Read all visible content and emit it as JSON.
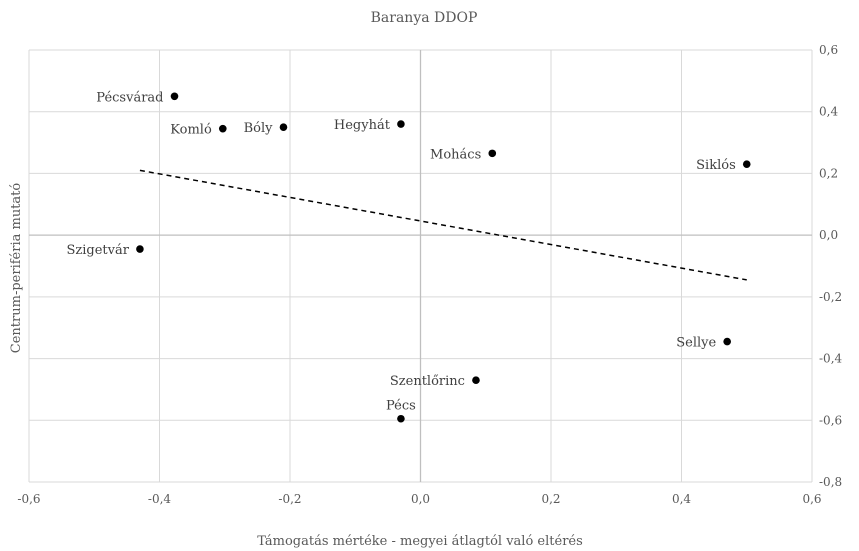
{
  "chart_data": {
    "type": "scatter",
    "title": "Baranya DDOP",
    "xlabel": "Támogatás mértéke - megyei átlagtól való eltérés",
    "ylabel": "Centrum-periféria mutató",
    "xlim": [
      -0.6,
      0.6
    ],
    "ylim": [
      -0.8,
      0.6
    ],
    "x_ticks": [
      "-0,6",
      "-0,4",
      "-0,2",
      "0,0",
      "0,2",
      "0,4",
      "0,6"
    ],
    "y_ticks": [
      "0,6",
      "0,4",
      "0,2",
      "0,0",
      "-0,2",
      "-0,4",
      "-0,6",
      "-0,8"
    ],
    "x_tick_values": [
      -0.6,
      -0.4,
      -0.2,
      0.0,
      0.2,
      0.4,
      0.6
    ],
    "y_tick_values": [
      0.6,
      0.4,
      0.2,
      0.0,
      -0.2,
      -0.4,
      -0.6,
      -0.8
    ],
    "grid": true,
    "points": [
      {
        "label": "Pécsvárad",
        "x": -0.377,
        "y": 0.45
      },
      {
        "label": "Komló",
        "x": -0.303,
        "y": 0.345
      },
      {
        "label": "Bóly",
        "x": -0.21,
        "y": 0.35
      },
      {
        "label": "Hegyhát",
        "x": -0.03,
        "y": 0.36
      },
      {
        "label": "Mohács",
        "x": 0.11,
        "y": 0.265
      },
      {
        "label": "Siklós",
        "x": 0.5,
        "y": 0.23
      },
      {
        "label": "Szigetvár",
        "x": -0.43,
        "y": -0.045
      },
      {
        "label": "Sellye",
        "x": 0.47,
        "y": -0.345
      },
      {
        "label": "Szentlőrinc",
        "x": 0.085,
        "y": -0.47
      },
      {
        "label": "Pécs",
        "x": -0.03,
        "y": -0.595
      }
    ],
    "trendline": {
      "style": "dashed",
      "x": [
        -0.43,
        0.5
      ],
      "y": [
        0.21,
        -0.145
      ]
    }
  }
}
